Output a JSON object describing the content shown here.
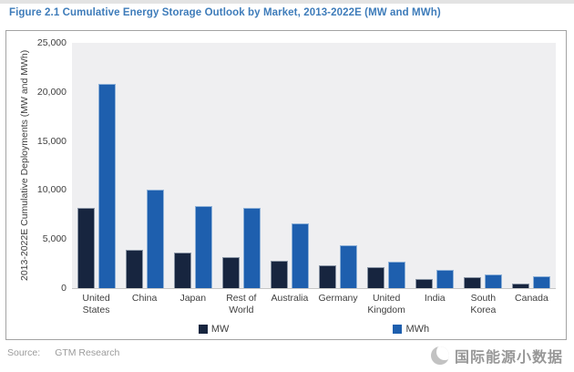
{
  "figure": {
    "title": "Figure 2.1  Cumulative Energy Storage Outlook by Market, 2013-2022E (MW and MWh)",
    "title_color": "#3e7cba"
  },
  "chart_data": {
    "type": "bar",
    "title": "Figure 2.1  Cumulative Energy Storage Outlook by Market, 2013-2022E (MW and MWh)",
    "xlabel": "",
    "ylabel": "2013-2022E Cumulative Deployments (MW and MWh)",
    "ylim": [
      0,
      25000
    ],
    "ytick_step": 5000,
    "yticks": [
      "0",
      "5,000",
      "10,000",
      "15,000",
      "20,000",
      "25,000"
    ],
    "grid": false,
    "legend_position": "bottom",
    "plot_background": "#efeff1",
    "categories": [
      "United States",
      "China",
      "Japan",
      "Rest of World",
      "Australia",
      "Germany",
      "United Kingdom",
      "India",
      "South Korea",
      "Canada"
    ],
    "series": [
      {
        "name": "MW",
        "color": "#17253f",
        "values": [
          8200,
          3900,
          3650,
          3200,
          2800,
          2350,
          2100,
          950,
          1100,
          450
        ]
      },
      {
        "name": "MWh",
        "color": "#1e5fae",
        "values": [
          20800,
          10000,
          8400,
          8200,
          6600,
          4350,
          2650,
          1900,
          1400,
          1200
        ]
      }
    ]
  },
  "footer": {
    "source_label": "Source:",
    "source_value": "GTM Research"
  },
  "watermark": {
    "text": "国际能源小数据",
    "icon": "crescent-globe-icon"
  }
}
